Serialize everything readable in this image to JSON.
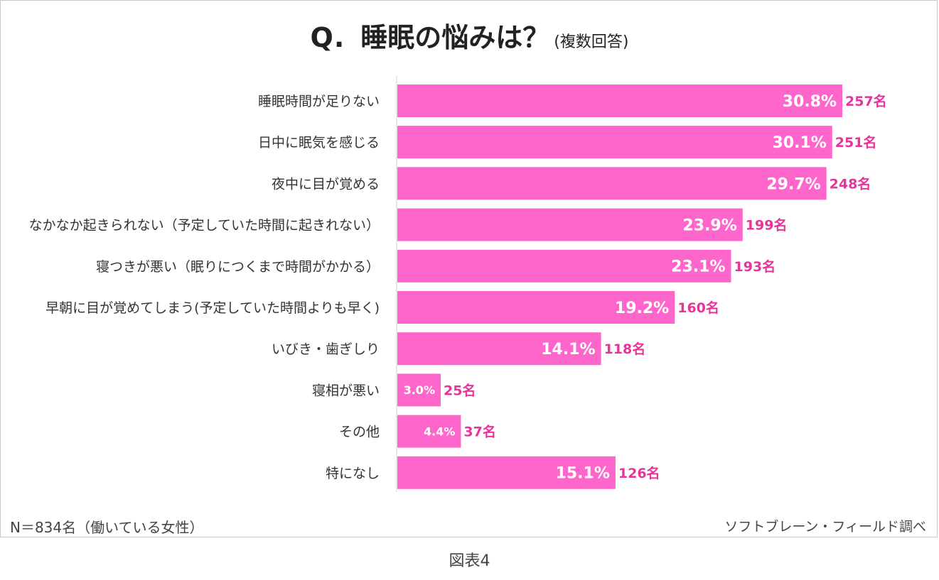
{
  "title": {
    "prefix": "Q.",
    "main": "睡眠の悩みは？",
    "sub": "(複数回答)"
  },
  "footnote": "N＝834名（働いている女性）",
  "source": "ソフトブレーン・フィールド調べ",
  "caption": "図表4",
  "colors": {
    "bar": "#ff66cc",
    "outside_label": "#e8339a",
    "axis": "#cccccc"
  },
  "chart_data": {
    "type": "bar",
    "orientation": "horizontal",
    "categories": [
      "睡眠時間が足りない",
      "日中に眠気を感じる",
      "夜中に目が覚める",
      "なかなか起きられない（予定していた時間に起きれない）",
      "寝つきが悪い（眠りにつくまで時間がかかる）",
      "早朝に目が覚めてしまう(予定していた時間よりも早く)",
      "いびき・歯ぎしり",
      "寝相が悪い",
      "その他",
      "特になし"
    ],
    "values": [
      30.8,
      30.1,
      29.7,
      23.9,
      23.1,
      19.2,
      14.1,
      3.0,
      4.4,
      15.1
    ],
    "value_labels": [
      "30.8%",
      "30.1%",
      "29.7%",
      "23.9%",
      "23.1%",
      "19.2%",
      "14.1%",
      "3.0%",
      "4.4%",
      "15.1%"
    ],
    "counts": [
      "257名",
      "251名",
      "248名",
      "199名",
      "193名",
      "160名",
      "118名",
      "25名",
      "37名",
      "126名"
    ],
    "xlim": [
      0,
      30.8
    ],
    "grid": false,
    "legend": "none"
  }
}
